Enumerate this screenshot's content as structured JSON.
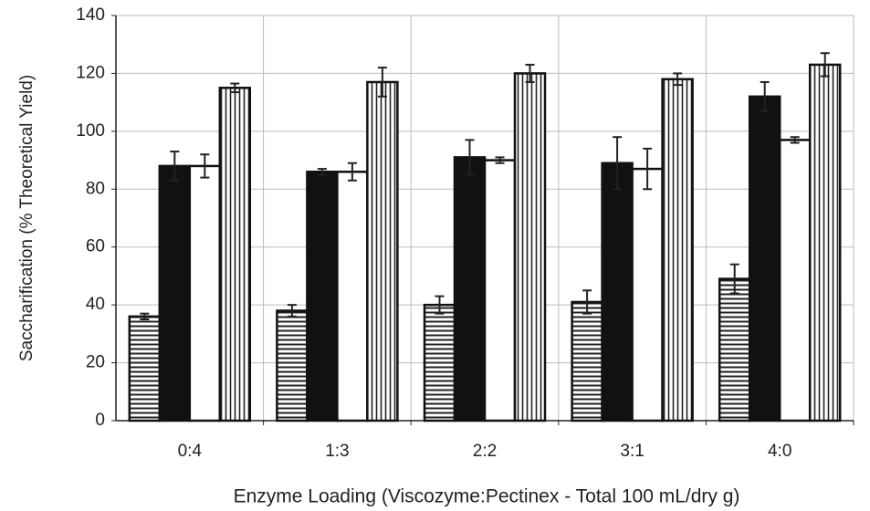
{
  "chart_data": {
    "type": "bar",
    "x_label": "Enzyme Loading (Viscozyme:Pectinex -  Total 100 mL/dry g)",
    "y_label": "Saccharification (% Theoretical Yield)",
    "categories": [
      "0:4",
      "1:3",
      "2:2",
      "3:1",
      "4:0"
    ],
    "series": [
      {
        "color": "#222222",
        "hatch": "horizontal",
        "values": [
          36,
          38,
          40,
          41,
          49
        ],
        "errors": [
          1,
          2,
          3,
          4,
          5
        ]
      },
      {
        "color": "#111111",
        "hatch": "none",
        "values": [
          88,
          86,
          91,
          89,
          112
        ],
        "errors": [
          5,
          1,
          6,
          9,
          5
        ]
      },
      {
        "color": "#ffffff",
        "hatch": "none",
        "values": [
          88,
          86,
          90,
          87,
          97
        ],
        "errors": [
          4,
          3,
          1,
          7,
          1
        ]
      },
      {
        "color": "#222222",
        "hatch": "vertical",
        "values": [
          115,
          117,
          120,
          118,
          123
        ],
        "errors": [
          1.5,
          5,
          3,
          2,
          4
        ]
      }
    ],
    "ylim": [
      0,
      140
    ],
    "yticks": [
      0,
      20,
      40,
      60,
      80,
      100,
      120,
      140
    ],
    "grid": true
  }
}
